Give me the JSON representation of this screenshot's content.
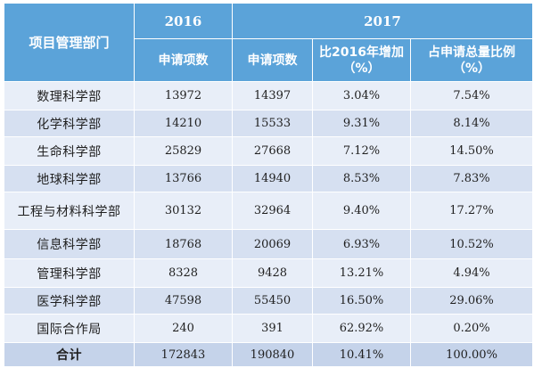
{
  "table": {
    "col_header_dept": "项目管理部门",
    "year_2016": "2016",
    "year_2017": "2017",
    "sub_2016_count": "申请项数",
    "sub_2017_count": "申请项数",
    "sub_increase_line1": "比2016年增加",
    "sub_increase_line2": "（%）",
    "sub_share_line1": "占申请总量比例",
    "sub_share_line2": "（%）",
    "rows": [
      {
        "dept": "数理科学部",
        "c2016": "13972",
        "c2017": "14397",
        "increase": "3.04%",
        "share": "7.54%"
      },
      {
        "dept": "化学科学部",
        "c2016": "14210",
        "c2017": "15533",
        "increase": "9.31%",
        "share": "8.14%"
      },
      {
        "dept": "生命科学部",
        "c2016": "25829",
        "c2017": "27668",
        "increase": "7.12%",
        "share": "14.50%"
      },
      {
        "dept": "地球科学部",
        "c2016": "13766",
        "c2017": "14940",
        "increase": "8.53%",
        "share": "7.83%"
      },
      {
        "dept": "工程与材料科学部",
        "c2016": "30132",
        "c2017": "32964",
        "increase": "9.40%",
        "share": "17.27%"
      },
      {
        "dept": "信息科学部",
        "c2016": "18768",
        "c2017": "20069",
        "increase": "6.93%",
        "share": "10.52%"
      },
      {
        "dept": "管理科学部",
        "c2016": "8328",
        "c2017": "9428",
        "increase": "13.21%",
        "share": "4.94%"
      },
      {
        "dept": "医学科学部",
        "c2016": "47598",
        "c2017": "55450",
        "increase": "16.50%",
        "share": "29.06%"
      },
      {
        "dept": "国际合作局",
        "c2016": "240",
        "c2017": "391",
        "increase": "62.92%",
        "share": "0.20%"
      }
    ],
    "total": {
      "dept": "合计",
      "c2016": "172843",
      "c2017": "190840",
      "increase": "10.41%",
      "share": "100.00%"
    }
  },
  "colors": {
    "header": "#5ba3d9",
    "row_light": "#e8eef8",
    "row_dark": "#d6e0f1",
    "total_row": "#c5d3ea"
  }
}
